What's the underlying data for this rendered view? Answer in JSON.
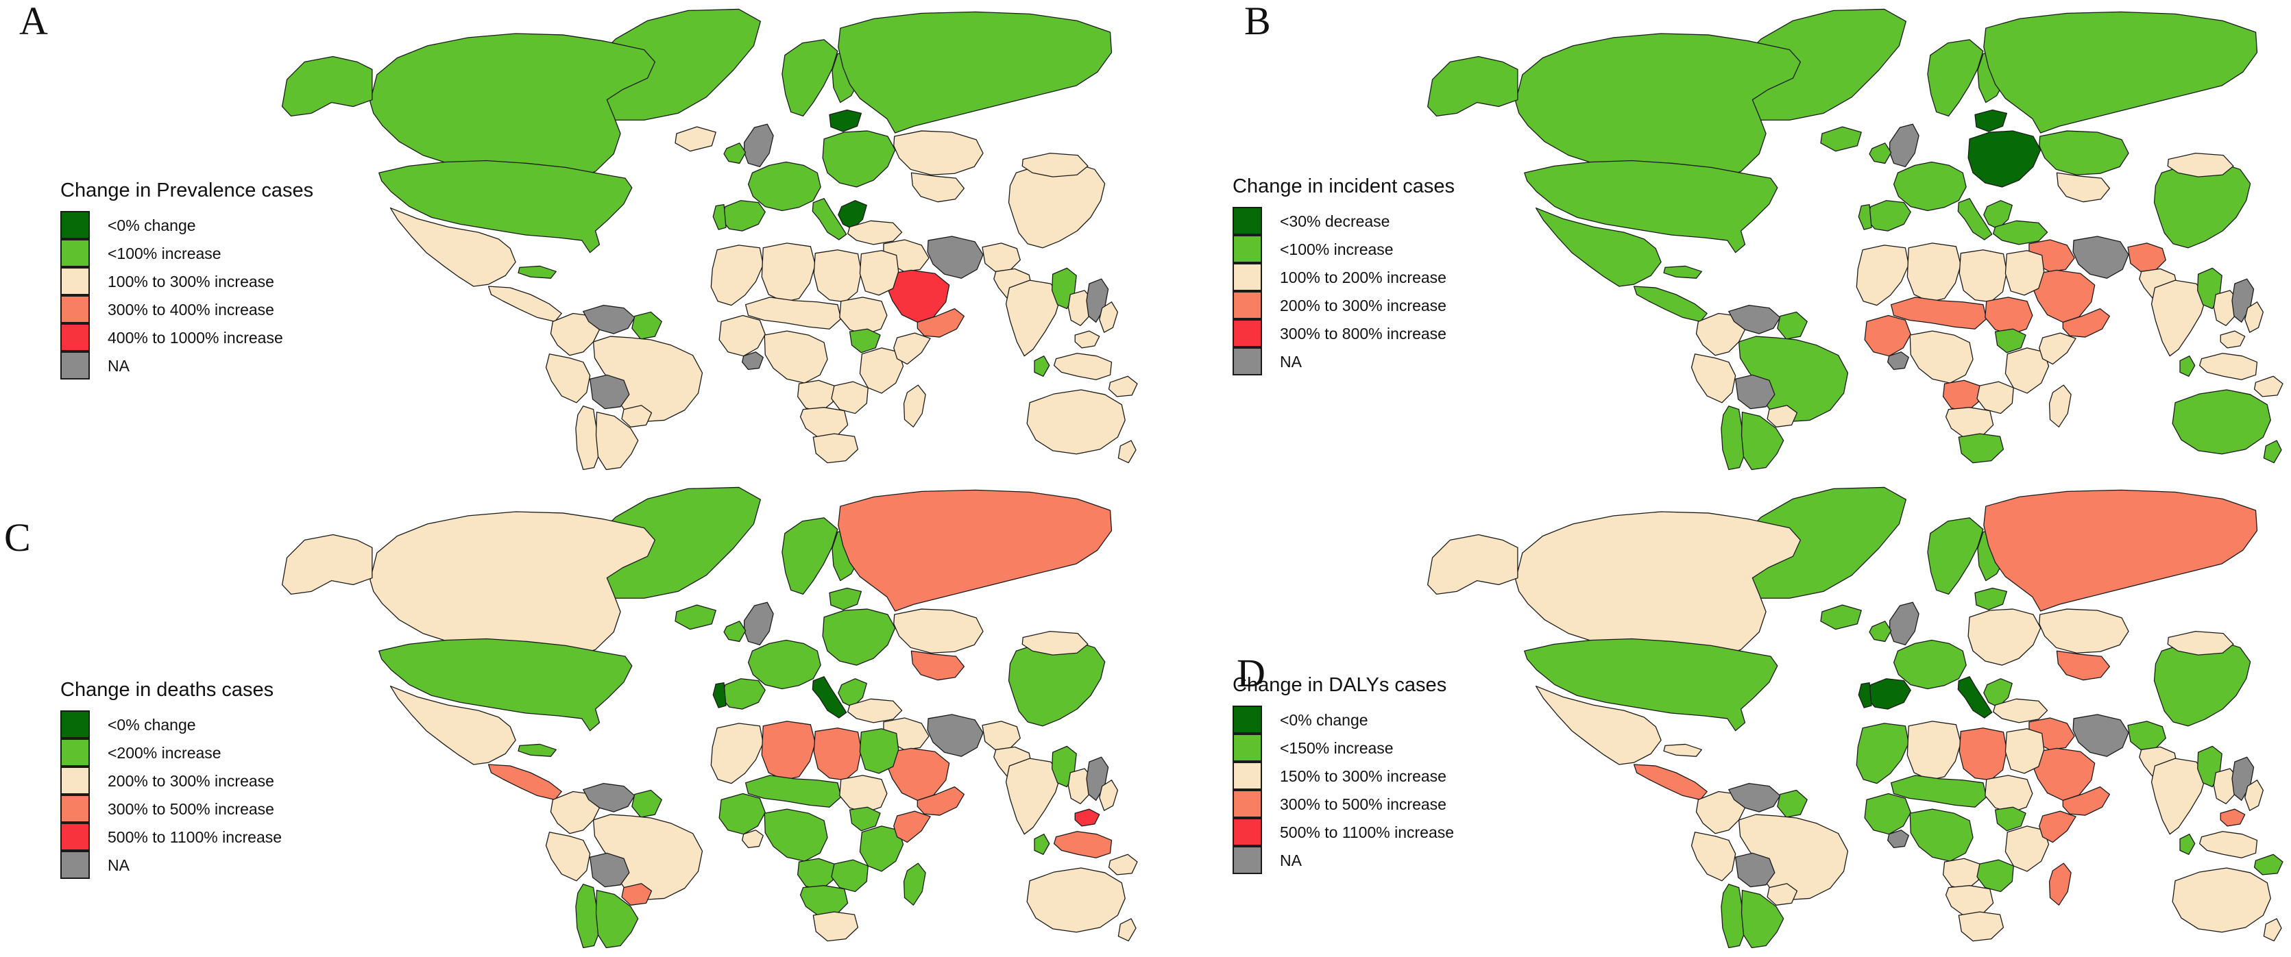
{
  "figure": {
    "background": "#ffffff",
    "border_color": "#1a1a1a",
    "na_label": "NA"
  },
  "palette": {
    "dg": "#066b06",
    "g": "#5fc12d",
    "c": "#f9e4c3",
    "s": "#f97f63",
    "r": "#f8333e",
    "na": "#8b8b8b"
  },
  "chart_data": [
    {
      "type": "choropleth",
      "panel": "A",
      "title": "Change in Prevalence cases",
      "legend_position": "left",
      "categories": [
        {
          "key": "dg",
          "label": "<0% change",
          "color": "#066b06"
        },
        {
          "key": "g",
          "label": "<100% increase",
          "color": "#5fc12d"
        },
        {
          "key": "c",
          "label": "100% to 300% increase",
          "color": "#f9e4c3"
        },
        {
          "key": "s",
          "label": "300% to 400% increase",
          "color": "#f97f63"
        },
        {
          "key": "r",
          "label": "400% to 1000% increase",
          "color": "#f8333e"
        },
        {
          "key": "na",
          "label": "NA",
          "color": "#8b8b8b"
        }
      ],
      "region_values": {
        "greenland": "g",
        "iceland": "c",
        "canada": "g",
        "alaska": "g",
        "usa": "g",
        "mexico": "c",
        "camerica": "c",
        "cuba": "g",
        "colombia": "c",
        "venezuela": "na",
        "guyana": "g",
        "peru": "c",
        "brazil": "c",
        "bolivia": "na",
        "paraguay": "c",
        "chile": "c",
        "argentina": "c",
        "uk": "na",
        "ireland": "g",
        "scandinavia": "g",
        "finland": "g",
        "weurope": "g",
        "iberia": "g",
        "portugal": "g",
        "italy": "g",
        "balkans": "dg",
        "eeurope": "g",
        "baltics": "dg",
        "russia": "g",
        "kazakhstan": "c",
        "centralasia": "c",
        "turkey": "c",
        "mideast": "c",
        "iran": "na",
        "afghanistan": "c",
        "pakistan": "c",
        "saudi": "r",
        "omanyemen": "s",
        "nafrica_w": "c",
        "algeria": "c",
        "libya": "c",
        "egypt": "c",
        "sahel": "c",
        "sudan": "c",
        "wafrica": "c",
        "ghana": "na",
        "cafrica": "c",
        "southsudan": "g",
        "eafrica": "c",
        "somalia": "c",
        "angola": "c",
        "zambia": "c",
        "namibia_bots": "c",
        "safrica": "c",
        "madagascar": "c",
        "india": "c",
        "srilanka": "g",
        "china": "c",
        "mongolia": "c",
        "myanmar": "g",
        "seasia": "c",
        "vietnam": "na",
        "malaysia": "c",
        "indonesia": "c",
        "philippines": "c",
        "png": "c",
        "japan": "g",
        "korea": "g",
        "australia": "c",
        "nz": "c"
      }
    },
    {
      "type": "choropleth",
      "panel": "B",
      "title": "Change in incident cases",
      "legend_position": "left",
      "categories": [
        {
          "key": "dg",
          "label": "<30% decrease",
          "color": "#066b06"
        },
        {
          "key": "g",
          "label": "<100% increase",
          "color": "#5fc12d"
        },
        {
          "key": "c",
          "label": "100% to 200% increase",
          "color": "#f9e4c3"
        },
        {
          "key": "s",
          "label": "200% to 300% increase",
          "color": "#f97f63"
        },
        {
          "key": "r",
          "label": "300% to 800% increase",
          "color": "#f8333e"
        },
        {
          "key": "na",
          "label": "NA",
          "color": "#8b8b8b"
        }
      ],
      "region_values": {
        "greenland": "g",
        "iceland": "g",
        "canada": "g",
        "alaska": "g",
        "usa": "g",
        "mexico": "g",
        "camerica": "g",
        "cuba": "g",
        "colombia": "c",
        "venezuela": "na",
        "guyana": "g",
        "peru": "c",
        "brazil": "g",
        "bolivia": "na",
        "paraguay": "c",
        "chile": "g",
        "argentina": "g",
        "uk": "na",
        "ireland": "g",
        "scandinavia": "g",
        "finland": "g",
        "weurope": "g",
        "iberia": "g",
        "portugal": "g",
        "italy": "g",
        "balkans": "g",
        "eeurope": "dg",
        "baltics": "dg",
        "russia": "g",
        "kazakhstan": "g",
        "centralasia": "c",
        "turkey": "g",
        "mideast": "s",
        "iran": "na",
        "afghanistan": "s",
        "pakistan": "c",
        "saudi": "s",
        "omanyemen": "s",
        "nafrica_w": "c",
        "algeria": "c",
        "libya": "c",
        "egypt": "c",
        "sahel": "s",
        "sudan": "s",
        "wafrica": "s",
        "ghana": "na",
        "cafrica": "c",
        "southsudan": "g",
        "eafrica": "c",
        "somalia": "c",
        "angola": "s",
        "zambia": "c",
        "namibia_bots": "c",
        "safrica": "g",
        "madagascar": "c",
        "india": "c",
        "srilanka": "g",
        "china": "g",
        "mongolia": "c",
        "myanmar": "g",
        "seasia": "c",
        "vietnam": "na",
        "malaysia": "c",
        "indonesia": "c",
        "philippines": "c",
        "png": "c",
        "japan": "g",
        "korea": "g",
        "australia": "g",
        "nz": "g"
      }
    },
    {
      "type": "choropleth",
      "panel": "C",
      "title": "Change in deaths cases",
      "legend_position": "left",
      "categories": [
        {
          "key": "dg",
          "label": "<0% change",
          "color": "#066b06"
        },
        {
          "key": "g",
          "label": "<200% increase",
          "color": "#5fc12d"
        },
        {
          "key": "c",
          "label": "200% to 300% increase",
          "color": "#f9e4c3"
        },
        {
          "key": "s",
          "label": "300% to 500% increase",
          "color": "#f97f63"
        },
        {
          "key": "r",
          "label": "500% to 1100% increase",
          "color": "#f8333e"
        },
        {
          "key": "na",
          "label": "NA",
          "color": "#8b8b8b"
        }
      ],
      "region_values": {
        "greenland": "g",
        "iceland": "g",
        "canada": "c",
        "alaska": "c",
        "usa": "g",
        "mexico": "c",
        "camerica": "s",
        "cuba": "g",
        "colombia": "c",
        "venezuela": "na",
        "guyana": "g",
        "peru": "c",
        "brazil": "c",
        "bolivia": "na",
        "paraguay": "s",
        "chile": "g",
        "argentina": "g",
        "uk": "na",
        "ireland": "g",
        "scandinavia": "g",
        "finland": "g",
        "weurope": "g",
        "iberia": "g",
        "portugal": "dg",
        "italy": "dg",
        "balkans": "g",
        "eeurope": "g",
        "baltics": "g",
        "russia": "s",
        "kazakhstan": "c",
        "centralasia": "s",
        "turkey": "c",
        "mideast": "c",
        "iran": "na",
        "afghanistan": "c",
        "pakistan": "c",
        "saudi": "s",
        "omanyemen": "s",
        "nafrica_w": "c",
        "algeria": "s",
        "libya": "s",
        "egypt": "g",
        "sahel": "g",
        "sudan": "c",
        "wafrica": "g",
        "ghana": "c",
        "cafrica": "g",
        "southsudan": "g",
        "eafrica": "g",
        "somalia": "s",
        "angola": "g",
        "zambia": "g",
        "namibia_bots": "g",
        "safrica": "c",
        "madagascar": "g",
        "india": "c",
        "srilanka": "g",
        "china": "g",
        "mongolia": "c",
        "myanmar": "g",
        "seasia": "c",
        "vietnam": "na",
        "malaysia": "r",
        "indonesia": "s",
        "philippines": "c",
        "png": "c",
        "japan": "g",
        "korea": "g",
        "australia": "c",
        "nz": "c"
      }
    },
    {
      "type": "choropleth",
      "panel": "D",
      "title": "Change in DALYs cases",
      "legend_position": "left",
      "categories": [
        {
          "key": "dg",
          "label": "<0% change",
          "color": "#066b06"
        },
        {
          "key": "g",
          "label": "<150% increase",
          "color": "#5fc12d"
        },
        {
          "key": "c",
          "label": "150% to 300% increase",
          "color": "#f9e4c3"
        },
        {
          "key": "s",
          "label": "300% to 500% increase",
          "color": "#f97f63"
        },
        {
          "key": "r",
          "label": "500% to 1100% increase",
          "color": "#f8333e"
        },
        {
          "key": "na",
          "label": "NA",
          "color": "#8b8b8b"
        }
      ],
      "region_values": {
        "greenland": "g",
        "iceland": "g",
        "canada": "c",
        "alaska": "c",
        "usa": "g",
        "mexico": "c",
        "camerica": "s",
        "cuba": "c",
        "colombia": "c",
        "venezuela": "na",
        "guyana": "g",
        "peru": "c",
        "brazil": "c",
        "bolivia": "na",
        "paraguay": "c",
        "chile": "g",
        "argentina": "g",
        "uk": "na",
        "ireland": "g",
        "scandinavia": "g",
        "finland": "g",
        "weurope": "g",
        "iberia": "dg",
        "portugal": "dg",
        "italy": "dg",
        "balkans": "g",
        "eeurope": "c",
        "baltics": "g",
        "russia": "s",
        "kazakhstan": "c",
        "centralasia": "s",
        "turkey": "c",
        "mideast": "s",
        "iran": "na",
        "afghanistan": "g",
        "pakistan": "c",
        "saudi": "s",
        "omanyemen": "s",
        "nafrica_w": "g",
        "algeria": "c",
        "libya": "s",
        "egypt": "c",
        "sahel": "g",
        "sudan": "c",
        "wafrica": "g",
        "ghana": "na",
        "cafrica": "g",
        "southsudan": "g",
        "eafrica": "c",
        "somalia": "s",
        "angola": "c",
        "zambia": "g",
        "namibia_bots": "c",
        "safrica": "c",
        "madagascar": "s",
        "india": "c",
        "srilanka": "g",
        "china": "g",
        "mongolia": "c",
        "myanmar": "g",
        "seasia": "c",
        "vietnam": "na",
        "malaysia": "s",
        "indonesia": "c",
        "philippines": "c",
        "png": "g",
        "japan": "dg",
        "korea": "g",
        "australia": "c",
        "nz": "c"
      }
    }
  ]
}
